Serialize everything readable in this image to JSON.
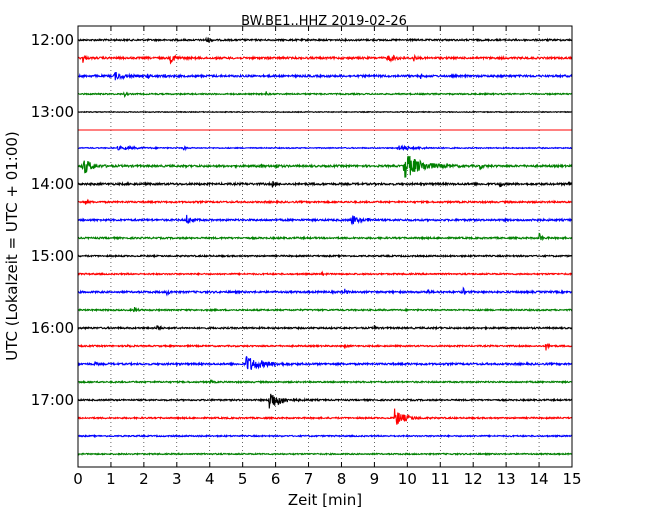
{
  "chart_data": {
    "type": "line",
    "title": "BW.BE1..HHZ 2019-02-26",
    "xlabel": "Zeit  [min]",
    "ylabel": "UTC (Lokalzeit = UTC + 01:00)",
    "xlim": [
      0,
      15
    ],
    "x_ticks": [
      0,
      1,
      2,
      3,
      4,
      5,
      6,
      7,
      8,
      9,
      10,
      11,
      12,
      13,
      14,
      15
    ],
    "y_tick_labels": [
      "12:00",
      "13:00",
      "14:00",
      "15:00",
      "16:00",
      "17:00"
    ],
    "grid": "vertical dotted",
    "colors": [
      "#000000",
      "#ff0000",
      "#0000ff",
      "#008000"
    ],
    "traces": [
      {
        "start": "12:00",
        "color": "#000000",
        "noise": 0.25,
        "events": [
          {
            "t": 3.9,
            "amp": 1.2,
            "w": 0.08
          }
        ]
      },
      {
        "start": "12:15",
        "color": "#ff0000",
        "noise": 0.3,
        "events": [
          {
            "t": 0.15,
            "amp": 1.3,
            "w": 0.05
          },
          {
            "t": 2.8,
            "amp": 1.4,
            "w": 0.15
          },
          {
            "t": 9.4,
            "amp": 1.0,
            "w": 0.25
          },
          {
            "t": 10.2,
            "amp": 1.4,
            "w": 0.03
          }
        ]
      },
      {
        "start": "12:30",
        "color": "#0000ff",
        "noise": 0.3,
        "events": [
          {
            "t": 1.1,
            "amp": 1.2,
            "w": 0.25
          },
          {
            "t": 2.1,
            "amp": 0.9,
            "w": 0.05
          },
          {
            "t": 2.6,
            "amp": 1.0,
            "w": 0.05
          },
          {
            "t": 10.4,
            "amp": 0.8,
            "w": 0.05
          }
        ]
      },
      {
        "start": "12:45",
        "color": "#008000",
        "noise": 0.2,
        "events": [
          {
            "t": 1.4,
            "amp": 1.0,
            "w": 0.04
          },
          {
            "t": 5.7,
            "amp": 1.0,
            "w": 0.04
          }
        ]
      },
      {
        "start": "13:00",
        "color": "#000000",
        "noise": 0.12,
        "events": []
      },
      {
        "start": "13:15",
        "color": "#ff0000",
        "noise": 0.0,
        "events": []
      },
      {
        "start": "13:30",
        "color": "#0000ff",
        "noise": 0.15,
        "events": [
          {
            "t": 1.2,
            "amp": 0.5,
            "w": 0.5
          },
          {
            "t": 3.2,
            "amp": 0.8,
            "w": 0.06
          },
          {
            "t": 9.7,
            "amp": 0.7,
            "w": 0.5
          }
        ]
      },
      {
        "start": "13:45",
        "color": "#008000",
        "noise": 0.3,
        "events": [
          {
            "t": 0.15,
            "amp": 3.0,
            "w": 0.2
          },
          {
            "t": 5.5,
            "amp": 0.8,
            "w": 0.06
          },
          {
            "t": 6.0,
            "amp": 0.9,
            "w": 0.06
          },
          {
            "t": 9.9,
            "amp": 4.2,
            "w": 0.45
          },
          {
            "t": 12.2,
            "amp": 0.8,
            "w": 0.08
          }
        ]
      },
      {
        "start": "14:00",
        "color": "#000000",
        "noise": 0.3,
        "events": [
          {
            "t": 5.9,
            "amp": 1.0,
            "w": 0.05
          },
          {
            "t": 12.8,
            "amp": 1.2,
            "w": 0.05
          },
          {
            "t": 14.9,
            "amp": 1.0,
            "w": 0.06
          }
        ]
      },
      {
        "start": "14:15",
        "color": "#ff0000",
        "noise": 0.25,
        "events": [
          {
            "t": 0.2,
            "amp": 1.0,
            "w": 0.06
          }
        ]
      },
      {
        "start": "14:30",
        "color": "#0000ff",
        "noise": 0.28,
        "events": [
          {
            "t": 3.3,
            "amp": 1.5,
            "w": 0.12
          },
          {
            "t": 8.3,
            "amp": 2.0,
            "w": 0.15
          },
          {
            "t": 8.8,
            "amp": 0.9,
            "w": 0.05
          },
          {
            "t": 13.8,
            "amp": 1.0,
            "w": 0.05
          }
        ]
      },
      {
        "start": "14:45",
        "color": "#008000",
        "noise": 0.25,
        "events": [
          {
            "t": 14.0,
            "amp": 1.8,
            "w": 0.06
          }
        ]
      },
      {
        "start": "15:00",
        "color": "#000000",
        "noise": 0.22,
        "events": []
      },
      {
        "start": "15:15",
        "color": "#ff0000",
        "noise": 0.22,
        "events": [
          {
            "t": 7.4,
            "amp": 1.0,
            "w": 0.04
          }
        ]
      },
      {
        "start": "15:30",
        "color": "#0000ff",
        "noise": 0.28,
        "events": [
          {
            "t": 2.7,
            "amp": 1.0,
            "w": 0.06
          },
          {
            "t": 8.1,
            "amp": 1.0,
            "w": 0.05
          },
          {
            "t": 10.6,
            "amp": 1.0,
            "w": 0.05
          },
          {
            "t": 11.7,
            "amp": 1.1,
            "w": 0.05
          }
        ]
      },
      {
        "start": "15:45",
        "color": "#008000",
        "noise": 0.22,
        "events": [
          {
            "t": 1.7,
            "amp": 1.1,
            "w": 0.06
          }
        ]
      },
      {
        "start": "16:00",
        "color": "#000000",
        "noise": 0.25,
        "events": [
          {
            "t": 2.4,
            "amp": 1.2,
            "w": 0.05
          },
          {
            "t": 9.0,
            "amp": 0.7,
            "w": 0.04
          }
        ]
      },
      {
        "start": "16:15",
        "color": "#ff0000",
        "noise": 0.22,
        "events": [
          {
            "t": 1.5,
            "amp": 1.2,
            "w": 0.05
          },
          {
            "t": 8.1,
            "amp": 0.8,
            "w": 0.04
          },
          {
            "t": 14.2,
            "amp": 1.4,
            "w": 0.06
          }
        ]
      },
      {
        "start": "16:30",
        "color": "#0000ff",
        "noise": 0.28,
        "events": [
          {
            "t": 0.5,
            "amp": 0.7,
            "w": 0.06
          },
          {
            "t": 5.1,
            "amp": 2.6,
            "w": 0.4
          }
        ]
      },
      {
        "start": "16:45",
        "color": "#008000",
        "noise": 0.22,
        "events": [
          {
            "t": 4.0,
            "amp": 0.7,
            "w": 0.05
          }
        ]
      },
      {
        "start": "17:00",
        "color": "#000000",
        "noise": 0.22,
        "events": [
          {
            "t": 5.8,
            "amp": 3.2,
            "w": 0.3
          }
        ]
      },
      {
        "start": "17:15",
        "color": "#ff0000",
        "noise": 0.22,
        "events": [
          {
            "t": 9.6,
            "amp": 3.0,
            "w": 0.25
          }
        ]
      },
      {
        "start": "17:30",
        "color": "#0000ff",
        "noise": 0.2,
        "events": []
      },
      {
        "start": "17:45",
        "color": "#008000",
        "noise": 0.2,
        "events": []
      }
    ]
  }
}
